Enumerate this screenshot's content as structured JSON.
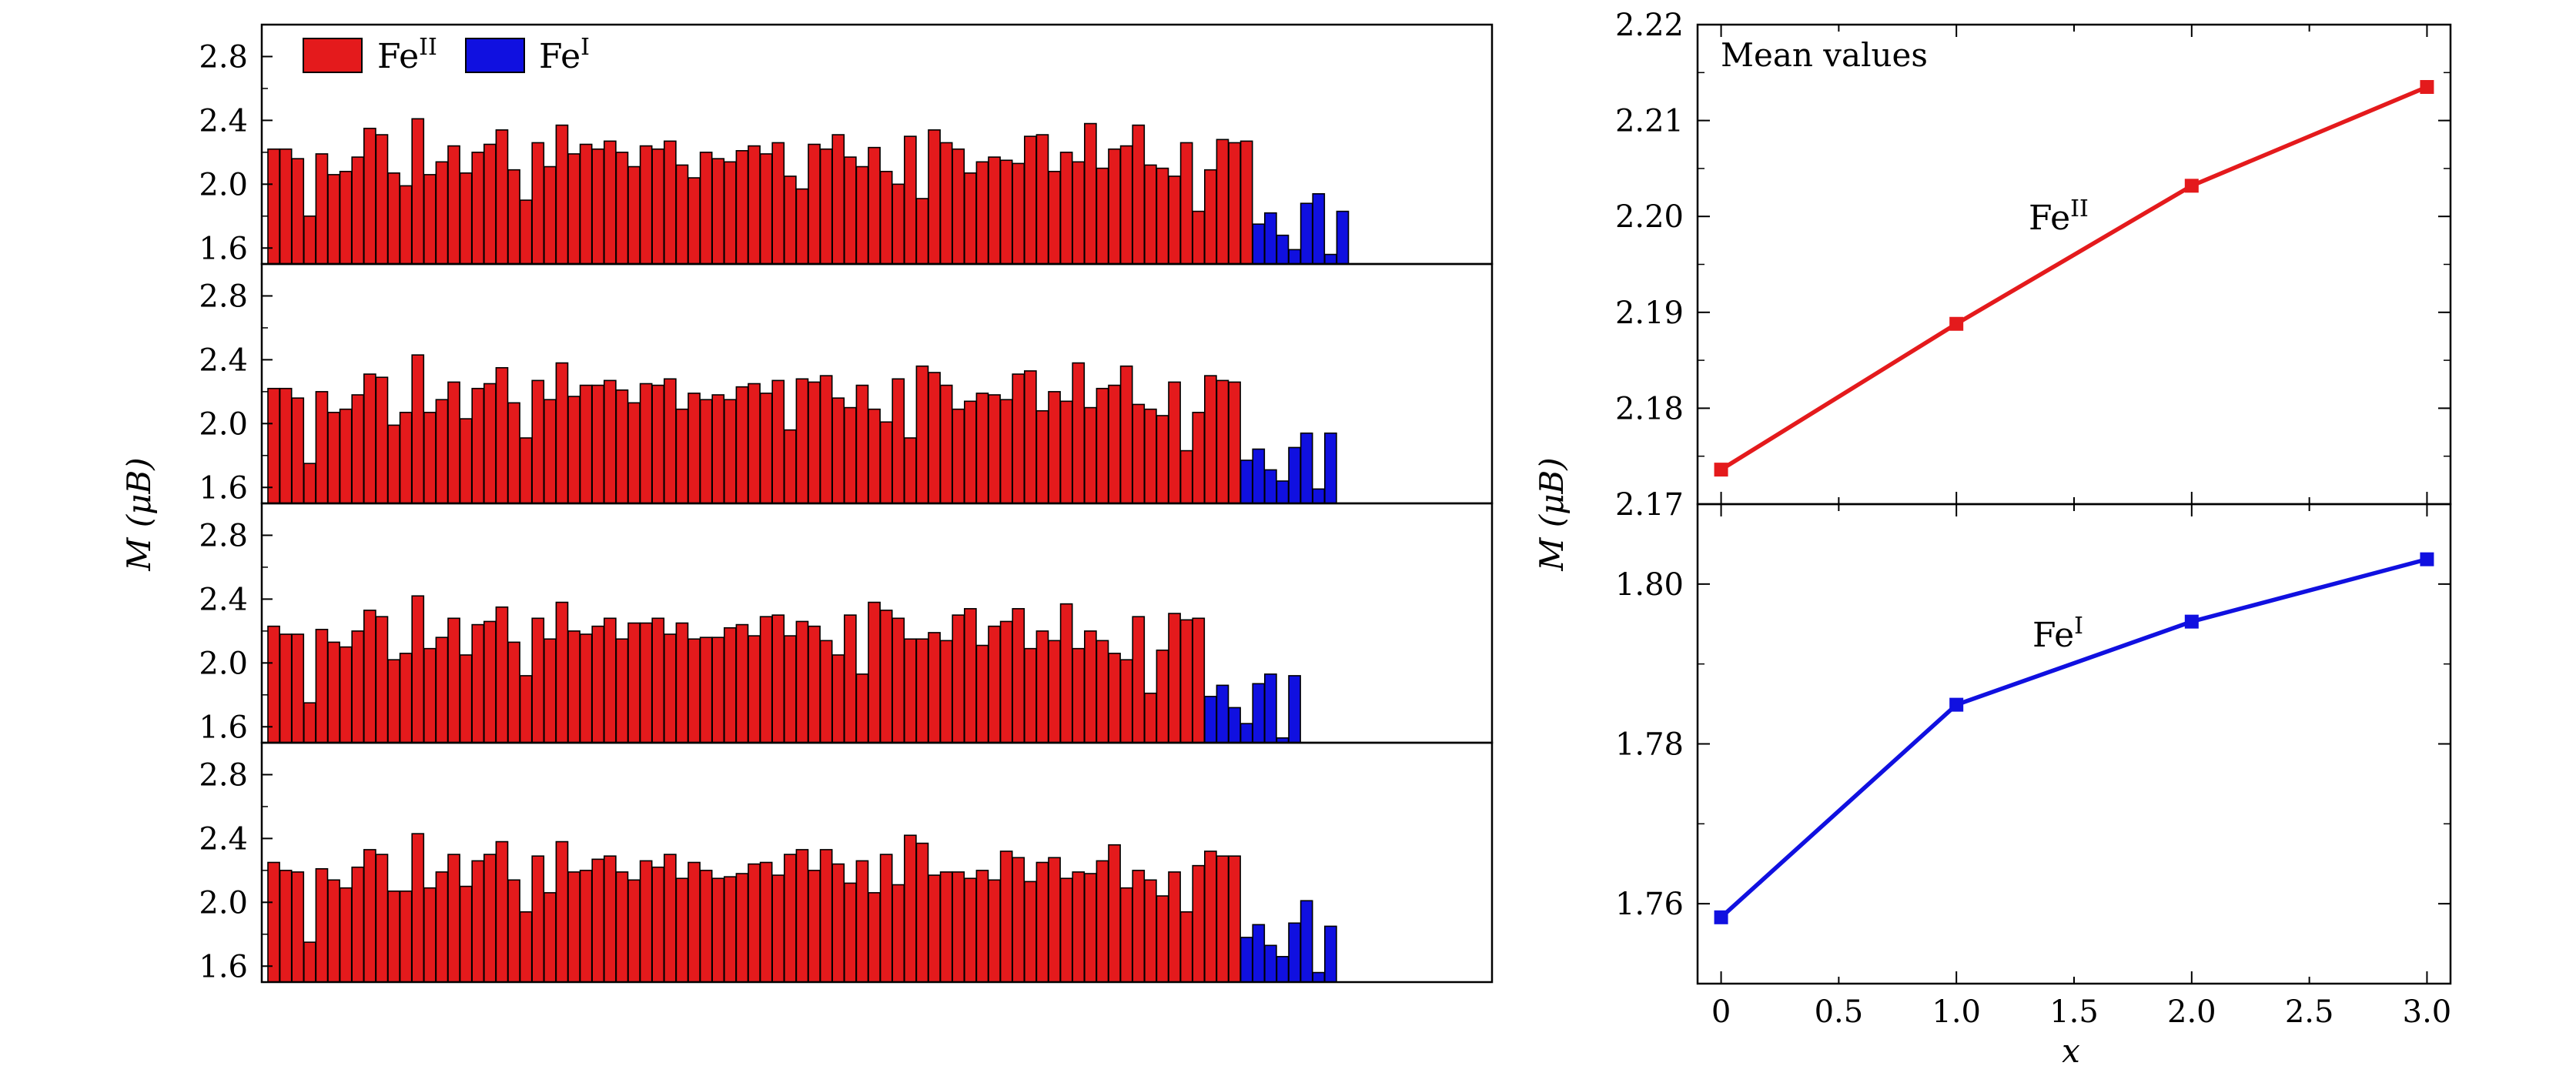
{
  "colors": {
    "fe2": "#e41a1c",
    "fe1": "#1010e0",
    "axis": "#000000"
  },
  "left": {
    "ylabel": "M (μB)",
    "legend": [
      {
        "label": "Fe",
        "sup": "II",
        "color_key": "fe2"
      },
      {
        "label": "Fe",
        "sup": "I",
        "color_key": "fe1"
      }
    ]
  },
  "right": {
    "annotation": "Mean values",
    "ylabel": "M (μB)",
    "xlabel": "x"
  },
  "chart_data": [
    {
      "type": "bar",
      "panel": "left-1",
      "ylim": [
        1.5,
        3.0
      ],
      "yticks": [
        1.6,
        2.0,
        2.4,
        2.8
      ],
      "ytick_labels": [
        "1.6",
        "2.0",
        "2.4",
        "2.8"
      ],
      "series": [
        {
          "name": "FeII",
          "color_key": "fe2",
          "values": [
            2.22,
            2.22,
            2.16,
            1.8,
            2.19,
            2.06,
            2.08,
            2.17,
            2.35,
            2.31,
            2.07,
            1.99,
            2.41,
            2.06,
            2.14,
            2.24,
            2.07,
            2.2,
            2.25,
            2.34,
            2.09,
            1.9,
            2.26,
            2.11,
            2.37,
            2.19,
            2.25,
            2.22,
            2.27,
            2.2,
            2.11,
            2.24,
            2.22,
            2.27,
            2.12,
            2.04,
            2.2,
            2.16,
            2.14,
            2.21,
            2.24,
            2.19,
            2.26,
            2.05,
            1.97,
            2.25,
            2.22,
            2.31,
            2.17,
            2.11,
            2.23,
            2.08,
            2.0,
            2.3,
            1.91,
            2.34,
            2.26,
            2.22,
            2.07,
            2.14,
            2.17,
            2.15,
            2.13,
            2.3,
            2.31,
            2.08,
            2.2,
            2.14,
            2.38,
            2.1,
            2.22,
            2.24,
            2.37,
            2.12,
            2.1,
            2.05,
            2.26,
            1.83,
            2.09,
            2.28,
            2.26,
            2.27
          ]
        },
        {
          "name": "FeI",
          "color_key": "fe1",
          "values": [
            1.75,
            1.82,
            1.68,
            1.59,
            1.88,
            1.94,
            1.56,
            1.83
          ]
        }
      ]
    },
    {
      "type": "bar",
      "panel": "left-2",
      "ylim": [
        1.5,
        3.0
      ],
      "yticks": [
        1.6,
        2.0,
        2.4,
        2.8
      ],
      "ytick_labels": [
        "1.6",
        "2.0",
        "2.4",
        "2.8"
      ],
      "series": [
        {
          "name": "FeII",
          "color_key": "fe2",
          "values": [
            2.22,
            2.22,
            2.16,
            1.75,
            2.2,
            2.07,
            2.09,
            2.18,
            2.31,
            2.29,
            1.99,
            2.07,
            2.43,
            2.07,
            2.15,
            2.26,
            2.03,
            2.22,
            2.25,
            2.35,
            2.13,
            1.91,
            2.27,
            2.15,
            2.38,
            2.17,
            2.24,
            2.24,
            2.27,
            2.21,
            2.13,
            2.25,
            2.24,
            2.28,
            2.09,
            2.19,
            2.15,
            2.18,
            2.15,
            2.23,
            2.25,
            2.19,
            2.27,
            1.96,
            2.28,
            2.26,
            2.3,
            2.16,
            2.1,
            2.24,
            2.09,
            2.01,
            2.28,
            1.91,
            2.36,
            2.32,
            2.24,
            2.09,
            2.14,
            2.19,
            2.18,
            2.15,
            2.31,
            2.33,
            2.08,
            2.2,
            2.14,
            2.38,
            2.1,
            2.22,
            2.24,
            2.36,
            2.12,
            2.09,
            2.05,
            2.26,
            1.83,
            2.07,
            2.3,
            2.27,
            2.26
          ]
        },
        {
          "name": "FeI",
          "color_key": "fe1",
          "values": [
            1.77,
            1.84,
            1.71,
            1.64,
            1.85,
            1.94,
            1.59,
            1.94
          ]
        }
      ]
    },
    {
      "type": "bar",
      "panel": "left-3",
      "ylim": [
        1.5,
        3.0
      ],
      "yticks": [
        1.6,
        2.0,
        2.4,
        2.8
      ],
      "ytick_labels": [
        "1.6",
        "2.0",
        "2.4",
        "2.8"
      ],
      "series": [
        {
          "name": "FeII",
          "color_key": "fe2",
          "values": [
            2.23,
            2.18,
            2.18,
            1.75,
            2.21,
            2.13,
            2.1,
            2.2,
            2.33,
            2.29,
            2.02,
            2.06,
            2.42,
            2.09,
            2.16,
            2.28,
            2.05,
            2.24,
            2.26,
            2.35,
            2.13,
            1.92,
            2.28,
            2.15,
            2.38,
            2.2,
            2.18,
            2.23,
            2.28,
            2.15,
            2.25,
            2.25,
            2.28,
            2.18,
            2.25,
            2.15,
            2.16,
            2.16,
            2.22,
            2.24,
            2.17,
            2.29,
            2.3,
            2.17,
            2.26,
            2.23,
            2.14,
            2.05,
            2.3,
            1.93,
            2.38,
            2.33,
            2.28,
            2.15,
            2.15,
            2.19,
            2.14,
            2.3,
            2.34,
            2.11,
            2.23,
            2.26,
            2.34,
            2.09,
            2.2,
            2.14,
            2.37,
            2.09,
            2.2,
            2.14,
            2.06,
            2.02,
            2.29,
            1.81,
            2.08,
            2.31,
            2.27,
            2.28
          ]
        },
        {
          "name": "FeI",
          "color_key": "fe1",
          "values": [
            1.79,
            1.86,
            1.72,
            1.62,
            1.87,
            1.93,
            1.53,
            1.92
          ]
        }
      ]
    },
    {
      "type": "bar",
      "panel": "left-4",
      "ylim": [
        1.5,
        3.0
      ],
      "yticks": [
        1.6,
        2.0,
        2.4,
        2.8
      ],
      "ytick_labels": [
        "1.6",
        "2.0",
        "2.4",
        "2.8"
      ],
      "series": [
        {
          "name": "FeII",
          "color_key": "fe2",
          "values": [
            2.25,
            2.2,
            2.19,
            1.75,
            2.21,
            2.14,
            2.09,
            2.22,
            2.33,
            2.3,
            2.07,
            2.07,
            2.43,
            2.09,
            2.19,
            2.3,
            2.1,
            2.26,
            2.3,
            2.38,
            2.14,
            1.94,
            2.29,
            2.06,
            2.38,
            2.19,
            2.2,
            2.27,
            2.29,
            2.19,
            2.14,
            2.26,
            2.22,
            2.3,
            2.15,
            2.25,
            2.2,
            2.15,
            2.16,
            2.18,
            2.24,
            2.25,
            2.17,
            2.3,
            2.33,
            2.2,
            2.33,
            2.24,
            2.12,
            2.26,
            2.06,
            2.3,
            2.11,
            2.42,
            2.37,
            2.17,
            2.19,
            2.19,
            2.15,
            2.2,
            2.14,
            2.32,
            2.28,
            2.13,
            2.25,
            2.28,
            2.15,
            2.19,
            2.18,
            2.26,
            2.36,
            2.09,
            2.2,
            2.14,
            2.04,
            2.19,
            1.94,
            2.23,
            2.32,
            2.29,
            2.29
          ]
        },
        {
          "name": "FeI",
          "color_key": "fe1",
          "values": [
            1.78,
            1.86,
            1.73,
            1.66,
            1.87,
            2.01,
            1.56,
            1.85
          ]
        }
      ]
    },
    {
      "type": "line",
      "panel": "right-top",
      "x": [
        0,
        1,
        2,
        3
      ],
      "xlim": [
        -0.1,
        3.1
      ],
      "ylim": [
        2.17,
        2.22
      ],
      "yticks": [
        2.17,
        2.18,
        2.19,
        2.2,
        2.21,
        2.22
      ],
      "ytick_labels": [
        "2.17",
        "2.18",
        "2.19",
        "2.20",
        "2.21",
        "2.22"
      ],
      "series": [
        {
          "name": "FeII",
          "color_key": "fe2",
          "values": [
            2.1736,
            2.1888,
            2.2032,
            2.2135
          ]
        }
      ],
      "series_labels": [
        {
          "text": "Fe",
          "sup": "II"
        }
      ]
    },
    {
      "type": "line",
      "panel": "right-bottom",
      "x": [
        0,
        1,
        2,
        3
      ],
      "xlim": [
        -0.1,
        3.1
      ],
      "ylim": [
        1.75,
        1.81
      ],
      "yticks": [
        1.76,
        1.78,
        1.8
      ],
      "ytick_labels": [
        "1.76",
        "1.78",
        "1.80"
      ],
      "xticks": [
        0,
        0.5,
        1.0,
        1.5,
        2.0,
        2.5,
        3.0
      ],
      "xtick_labels": [
        "0",
        "0.5",
        "1.0",
        "1.5",
        "2.0",
        "2.5",
        "3.0"
      ],
      "series": [
        {
          "name": "FeI",
          "color_key": "fe1",
          "values": [
            1.7583,
            1.7849,
            1.7953,
            1.8031
          ]
        }
      ],
      "series_labels": [
        {
          "text": "Fe",
          "sup": "I"
        }
      ]
    }
  ]
}
